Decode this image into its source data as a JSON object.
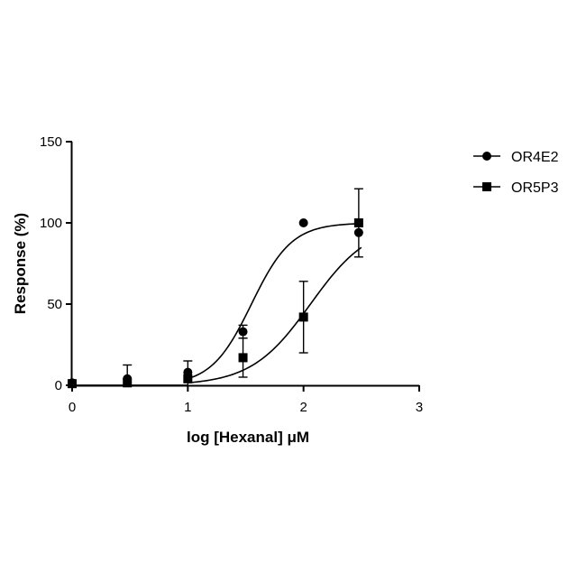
{
  "chart_data": {
    "type": "scatter",
    "xlabel": "log [Hexanal] μM",
    "ylabel": "Response (%)",
    "xlim": [
      0,
      3
    ],
    "ylim": [
      0,
      150
    ],
    "xticks": [
      "0",
      "1",
      "2",
      "3"
    ],
    "yticks": [
      "0",
      "50",
      "100",
      "150"
    ],
    "legend_position": "top-right",
    "series": [
      {
        "name": "OR4E2",
        "marker": "circle",
        "color": "#000000",
        "points": [
          {
            "x": 0,
            "y": 1.5,
            "err": 0
          },
          {
            "x": 0.477,
            "y": 4,
            "err": 0
          },
          {
            "x": 1,
            "y": 8,
            "err": 0
          },
          {
            "x": 1.477,
            "y": 33,
            "err": 4
          },
          {
            "x": 2,
            "y": 100,
            "err": 0
          },
          {
            "x": 2.477,
            "y": 94,
            "err": 0
          }
        ],
        "fit": {
          "bottom": 0,
          "top": 100,
          "log_ec50": 1.55,
          "hill": 2.5
        }
      },
      {
        "name": "OR5P3",
        "marker": "square",
        "color": "#000000",
        "points": [
          {
            "x": 0,
            "y": 1,
            "err": 0
          },
          {
            "x": 0.477,
            "y": 1.5,
            "err": 11
          },
          {
            "x": 1,
            "y": 4,
            "err": 11
          },
          {
            "x": 1.477,
            "y": 17,
            "err": 12
          },
          {
            "x": 2,
            "y": 42,
            "err": 22
          },
          {
            "x": 2.477,
            "y": 100,
            "err": 21
          }
        ],
        "fit": {
          "bottom": 0,
          "top": 100,
          "log_ec50": 2.06,
          "hill": 1.7
        }
      }
    ]
  }
}
